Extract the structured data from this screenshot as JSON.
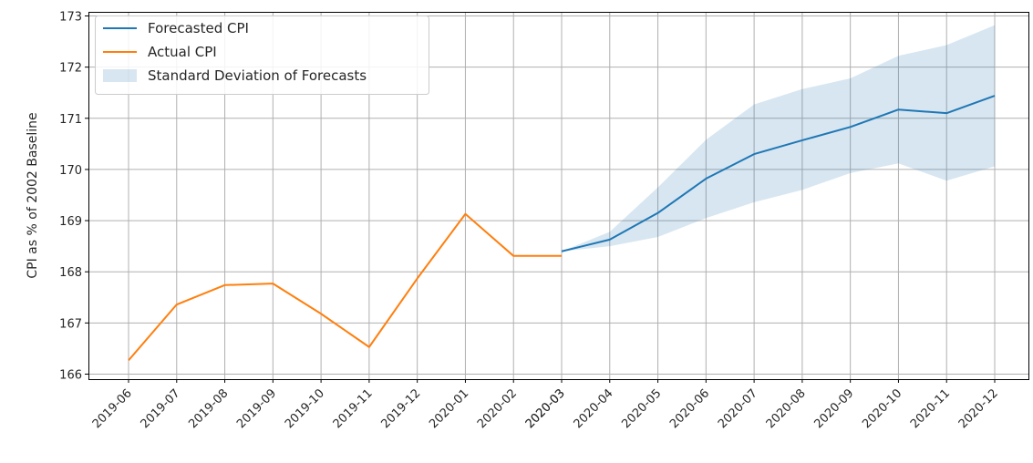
{
  "chart_data": {
    "type": "line",
    "xlabel": "",
    "ylabel": "CPI as % of 2002 Baseline",
    "ylim": [
      166,
      173
    ],
    "yticks": [
      166,
      167,
      168,
      169,
      170,
      171,
      172,
      173
    ],
    "categories": [
      "2019-06",
      "2019-07",
      "2019-08",
      "2019-09",
      "2019-10",
      "2019-11",
      "2019-12",
      "2020-01",
      "2020-02",
      "2020-03",
      "2020-03",
      "2020-04",
      "2020-05",
      "2020-06",
      "2020-07",
      "2020-08",
      "2020-09",
      "2020-10",
      "2020-11",
      "2020-12"
    ],
    "grid": true,
    "legend_position": "top-left",
    "series": [
      {
        "name": "Forecasted CPI",
        "color": "#1f77b4",
        "points": [
          {
            "x": "2020-03",
            "y": 168.4
          },
          {
            "x": "2020-04",
            "y": 168.63
          },
          {
            "x": "2020-05",
            "y": 169.15
          },
          {
            "x": "2020-06",
            "y": 169.82
          },
          {
            "x": "2020-07",
            "y": 170.3
          },
          {
            "x": "2020-08",
            "y": 170.57
          },
          {
            "x": "2020-09",
            "y": 170.83
          },
          {
            "x": "2020-10",
            "y": 171.17
          },
          {
            "x": "2020-11",
            "y": 171.1
          },
          {
            "x": "2020-12",
            "y": 171.44
          }
        ]
      },
      {
        "name": "Actual CPI",
        "color": "#ff7f0e",
        "points": [
          {
            "x": "2019-06",
            "y": 166.27
          },
          {
            "x": "2019-07",
            "y": 167.36
          },
          {
            "x": "2019-08",
            "y": 167.74
          },
          {
            "x": "2019-09",
            "y": 167.77
          },
          {
            "x": "2019-10",
            "y": 167.18
          },
          {
            "x": "2019-11",
            "y": 166.53
          },
          {
            "x": "2019-12",
            "y": 167.87
          },
          {
            "x": "2020-01",
            "y": 169.13
          },
          {
            "x": "2020-02",
            "y": 168.31
          },
          {
            "x": "2020-03",
            "y": 168.31
          }
        ]
      }
    ],
    "band": {
      "name": "Standard Deviation of Forecasts",
      "color": "#1f77b4",
      "points": [
        {
          "x": "2020-03",
          "low": 168.4,
          "high": 168.4
        },
        {
          "x": "2020-04",
          "low": 168.5,
          "high": 168.78
        },
        {
          "x": "2020-05",
          "low": 168.68,
          "high": 169.65
        },
        {
          "x": "2020-06",
          "low": 169.05,
          "high": 170.58
        },
        {
          "x": "2020-07",
          "low": 169.36,
          "high": 171.27
        },
        {
          "x": "2020-08",
          "low": 169.6,
          "high": 171.57
        },
        {
          "x": "2020-09",
          "low": 169.93,
          "high": 171.78
        },
        {
          "x": "2020-10",
          "low": 170.12,
          "high": 172.22
        },
        {
          "x": "2020-11",
          "low": 169.78,
          "high": 172.43
        },
        {
          "x": "2020-12",
          "low": 170.06,
          "high": 172.82
        }
      ]
    },
    "legend": [
      "Forecasted CPI",
      "Actual CPI",
      "Standard Deviation of Forecasts"
    ]
  }
}
